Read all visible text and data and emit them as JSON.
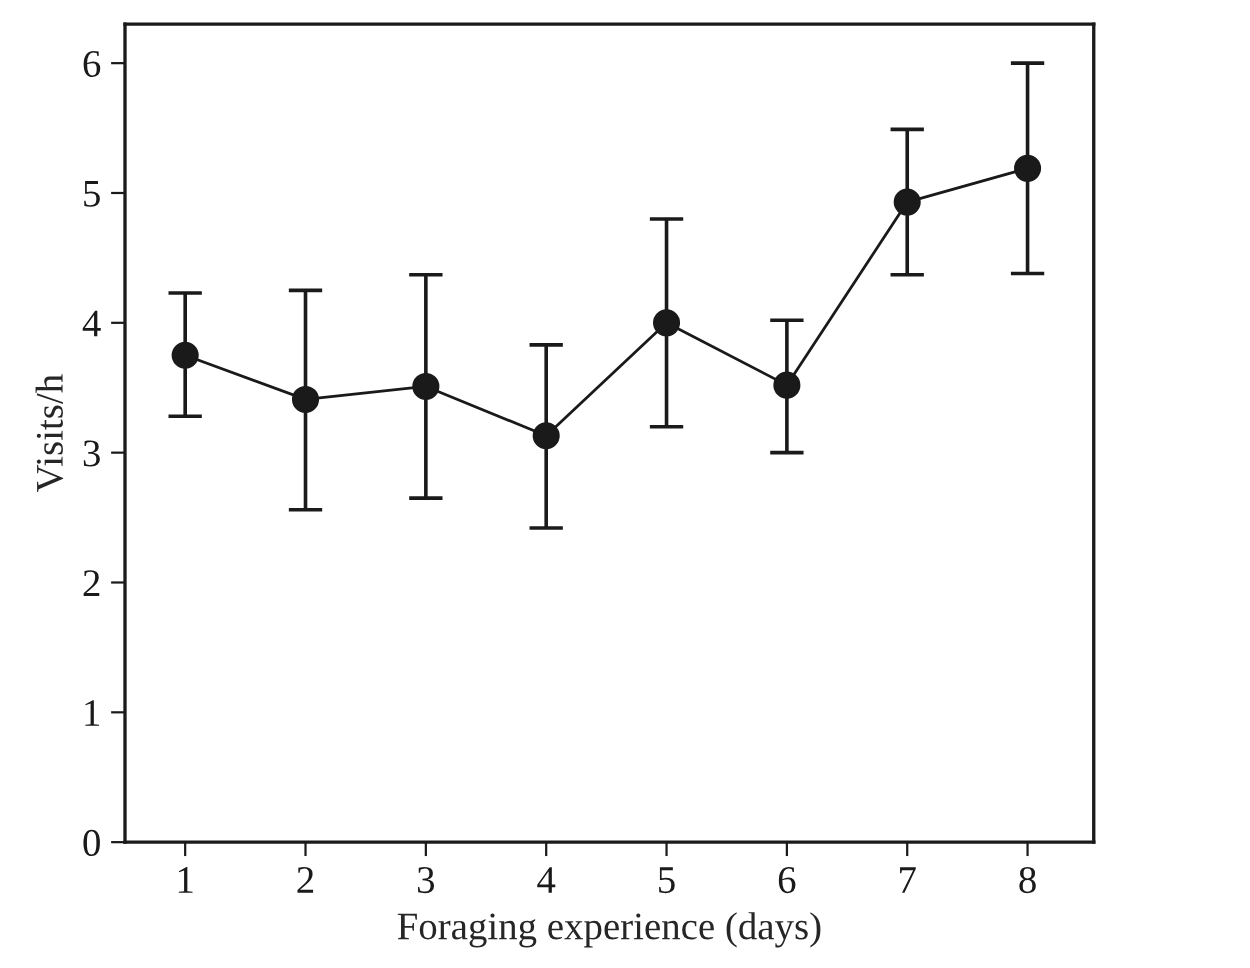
{
  "chart_data": {
    "type": "line",
    "xlabel": "Foraging experience (days)",
    "ylabel": "Visits/h",
    "x": [
      1,
      2,
      3,
      4,
      5,
      6,
      7,
      8
    ],
    "series": [
      {
        "color": "#1a1a1a",
        "values": [
          3.75,
          3.41,
          3.51,
          3.13,
          4.0,
          3.52,
          4.93,
          5.19
        ],
        "errors": [
          [
            3.28,
            4.23
          ],
          [
            2.56,
            4.25
          ],
          [
            2.65,
            4.37
          ],
          [
            2.42,
            3.83
          ],
          [
            3.2,
            4.8
          ],
          [
            3.0,
            4.02
          ],
          [
            4.37,
            5.49
          ],
          [
            4.38,
            6.0
          ]
        ]
      }
    ],
    "marker": "circle",
    "line_style": "solid",
    "grid": false,
    "xlim": [
      0.5,
      8.55
    ],
    "xticks": [
      1,
      2,
      3,
      4,
      5,
      6,
      7,
      8
    ],
    "ylim": [
      0,
      6.3
    ],
    "yticks": [
      0,
      1,
      2,
      3,
      4,
      5,
      6
    ]
  }
}
